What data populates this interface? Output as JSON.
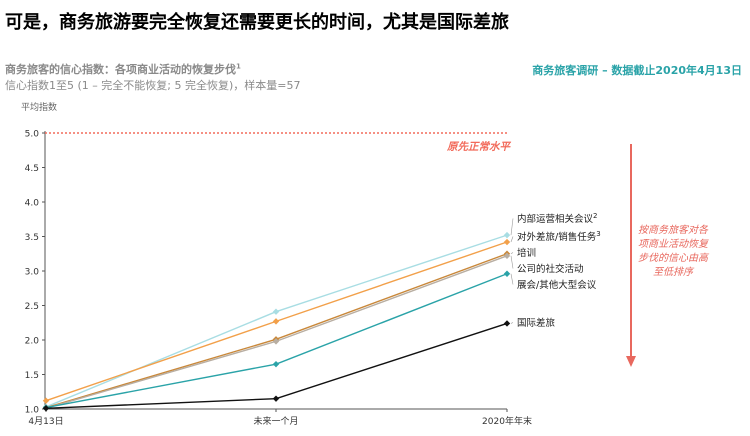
{
  "header": {
    "title": "可是，商务旅游要完全恢复还需要更长的时间，尤其是国际差旅",
    "chart_heading": "商务旅客的信心指数：各项商业活动的恢复步伐",
    "chart_heading_footnote": "1",
    "chart_subheading": "信心指数1至5 (1 – 完全不能恢复; 5 完全恢复)，样本量=57",
    "source_note": "商务旅客调研 – 数据截止2020年4月13日"
  },
  "annotations": {
    "normal_level_label": "原先正常水平",
    "ranking_note": "按商务旅客对各项商业活动恢复步伐的信心由高至低排序"
  },
  "colors": {
    "reference_line": "#f26b5b",
    "ranking_arrow": "#e8685e",
    "source_note": "#2aa3a8"
  },
  "chart_data": {
    "type": "line",
    "ylabel": "平均指数",
    "ylim": [
      1.0,
      5.0
    ],
    "yticks": [
      1.0,
      1.5,
      2.0,
      2.5,
      3.0,
      3.5,
      4.0,
      4.5,
      5.0
    ],
    "categories": [
      "4月13日",
      "未来一个月",
      "2020年年末"
    ],
    "reference_line": {
      "value": 5.0,
      "label": "原先正常水平"
    },
    "grid": false,
    "series": [
      {
        "name": "内部运营相关会议",
        "footnote": "2",
        "color": "#a8dde3",
        "values": [
          1.03,
          2.41,
          3.52
        ]
      },
      {
        "name": "对外差旅/销售任务",
        "footnote": "3",
        "color": "#f2a04a",
        "values": [
          1.12,
          2.27,
          3.42
        ]
      },
      {
        "name": "培训",
        "footnote": "",
        "color": "#c9883a",
        "values": [
          1.02,
          2.01,
          3.25
        ]
      },
      {
        "name": "公司的社交活动",
        "footnote": "",
        "color": "#b8aea2",
        "values": [
          1.01,
          1.98,
          3.22
        ]
      },
      {
        "name": "展会/其他大型会议",
        "footnote": "",
        "color": "#2aa3a8",
        "values": [
          1.02,
          1.65,
          2.96
        ]
      },
      {
        "name": "国际差旅",
        "footnote": "",
        "color": "#111111",
        "values": [
          1.01,
          1.15,
          2.24
        ]
      }
    ]
  }
}
